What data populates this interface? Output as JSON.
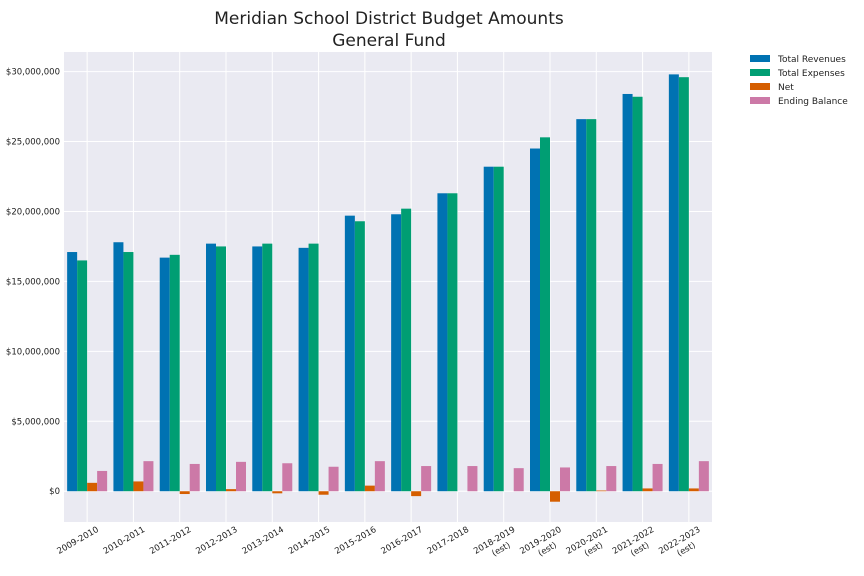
{
  "chart_data": {
    "type": "bar",
    "title": "Meridian School District Budget Amounts",
    "subtitle": "General Fund",
    "xlabel": "",
    "ylabel": "",
    "categories": [
      "2009-2010",
      "2010-2011",
      "2011-2012",
      "2012-2013",
      "2013-2014",
      "2014-2015",
      "2015-2016",
      "2016-2017",
      "2017-2018",
      "2018-2019\n(est)",
      "2019-2020\n(est)",
      "2020-2021\n(est)",
      "2021-2022\n(est)",
      "2022-2023\n(est)"
    ],
    "series": [
      {
        "name": "Total Revenues",
        "color": "#0072B2",
        "values": [
          17100000,
          17800000,
          16700000,
          17700000,
          17500000,
          17400000,
          19700000,
          19800000,
          21300000,
          23200000,
          24500000,
          26600000,
          28400000,
          29800000
        ]
      },
      {
        "name": "Total Expenses",
        "color": "#009E73",
        "values": [
          16500000,
          17100000,
          16900000,
          17500000,
          17700000,
          17700000,
          19300000,
          20200000,
          21300000,
          23200000,
          25300000,
          26600000,
          28200000,
          29600000
        ]
      },
      {
        "name": "Net",
        "color": "#D55E00",
        "values": [
          600000,
          700000,
          -200000,
          150000,
          -150000,
          -250000,
          400000,
          -350000,
          0,
          0,
          -750000,
          50000,
          200000,
          200000
        ]
      },
      {
        "name": "Ending Balance",
        "color": "#CC79A7",
        "values": [
          1450000,
          2150000,
          1950000,
          2100000,
          2000000,
          1750000,
          2150000,
          1800000,
          1800000,
          1650000,
          1700000,
          1800000,
          1950000,
          2150000
        ]
      }
    ],
    "yticks": [
      0,
      5000000,
      10000000,
      15000000,
      20000000,
      25000000,
      30000000
    ],
    "ytick_labels": [
      "$0",
      "$5,000,000",
      "$10,000,000",
      "$15,000,000",
      "$20,000,000",
      "$25,000,000",
      "$30,000,000"
    ],
    "ylim": [
      -2200000,
      31400000
    ],
    "grid": true,
    "legend_position": "outside-top-right",
    "colors": {
      "background": "#EAEAF2",
      "grid": "#FFFFFF"
    }
  }
}
